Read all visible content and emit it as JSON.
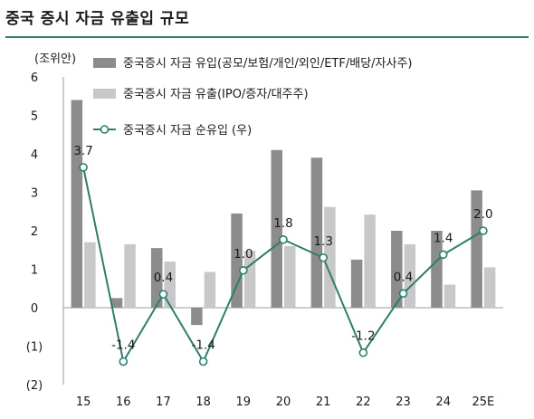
{
  "title": "중국 증시 자금 유출입 규모",
  "chart_data": {
    "type": "bar",
    "unit_label": "(조위안)",
    "categories": [
      "15",
      "16",
      "17",
      "18",
      "19",
      "20",
      "21",
      "22",
      "23",
      "24",
      "25E"
    ],
    "ylim": [
      -2,
      6
    ],
    "yticks": [
      6,
      5,
      4,
      3,
      2,
      1,
      0,
      -1,
      -2
    ],
    "ytick_labels": [
      "6",
      "5",
      "4",
      "3",
      "2",
      "1",
      "0",
      "(1)",
      "(2)"
    ],
    "grid": false,
    "legend_position": "top-left",
    "colors": {
      "inflow": "#8c8c8c",
      "outflow": "#c8c8c8",
      "net": "#2e7d6e"
    },
    "series": [
      {
        "name": "중국증시 자금 유입(공모/보험/개인/외인/ETF/배당/자사주)",
        "kind": "bar",
        "values": [
          5.4,
          0.25,
          1.55,
          -0.45,
          2.45,
          4.1,
          3.9,
          1.25,
          2.0,
          2.0,
          3.05
        ]
      },
      {
        "name": "중국증시 자금 유출(IPO/증자/대주주)",
        "kind": "bar",
        "values": [
          1.7,
          1.65,
          1.2,
          0.93,
          1.48,
          1.6,
          2.62,
          2.42,
          1.65,
          0.6,
          1.05
        ]
      },
      {
        "name": "중국증시 자금 순유입 (우)",
        "kind": "line",
        "values": [
          3.65,
          -1.4,
          0.35,
          -1.4,
          0.97,
          1.77,
          1.3,
          -1.17,
          0.37,
          1.38,
          2.0
        ],
        "labels": [
          "3.7",
          "-1.4",
          "0.4",
          "-1.4",
          "1.0",
          "1.8",
          "1.3",
          "-1.2",
          "0.4",
          "1.4",
          "2.0"
        ]
      }
    ]
  }
}
